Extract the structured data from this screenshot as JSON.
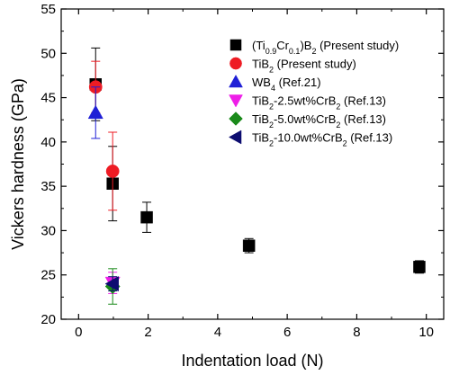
{
  "chart_data": {
    "type": "scatter",
    "xlabel": "Indentation load (N)",
    "ylabel": "Vickers hardness (GPa)",
    "xlim": [
      -0.5,
      10.5
    ],
    "ylim": [
      20,
      55
    ],
    "xticks": [
      0,
      2,
      4,
      6,
      8,
      10
    ],
    "yticks": [
      20,
      25,
      30,
      35,
      40,
      45,
      50,
      55
    ],
    "x_tick_labels": [
      "0",
      "2",
      "4",
      "6",
      "8",
      "10"
    ],
    "y_tick_labels": [
      "20",
      "25",
      "30",
      "35",
      "40",
      "45",
      "50",
      "55"
    ],
    "grid": false,
    "legend_position": "top-right",
    "series": [
      {
        "legend_parts": [
          [
            "(Ti",
            "n"
          ],
          [
            "0.9",
            "sub"
          ],
          [
            "Cr",
            "n"
          ],
          [
            "0.1",
            "sub"
          ],
          [
            ")B",
            "n"
          ],
          [
            "2",
            "sub"
          ],
          [
            " (Present study)",
            "n"
          ]
        ],
        "marker": "square",
        "color": "#000000",
        "points": [
          {
            "x": 0.49,
            "y": 46.5,
            "err": 4.1
          },
          {
            "x": 0.98,
            "y": 35.3,
            "err": 4.2
          },
          {
            "x": 1.96,
            "y": 31.5,
            "err": 1.7
          },
          {
            "x": 4.9,
            "y": 28.3,
            "err": 0.8
          },
          {
            "x": 9.8,
            "y": 25.9,
            "err": 0.7
          }
        ]
      },
      {
        "legend_parts": [
          [
            "TiB",
            "n"
          ],
          [
            "2",
            "sub"
          ],
          [
            " (Present study)",
            "n"
          ]
        ],
        "marker": "circle",
        "color": "#ee1c24",
        "points": [
          {
            "x": 0.49,
            "y": 46.2,
            "err": 2.9
          },
          {
            "x": 0.98,
            "y": 36.7,
            "err": 4.4
          }
        ]
      },
      {
        "legend_parts": [
          [
            "WB",
            "n"
          ],
          [
            "4",
            "sub"
          ],
          [
            " (Ref.21)",
            "n"
          ]
        ],
        "marker": "triangle-up",
        "color": "#1f1fd6",
        "points": [
          {
            "x": 0.49,
            "y": 43.3,
            "err": 2.9
          }
        ]
      },
      {
        "legend_parts": [
          [
            "TiB",
            "n"
          ],
          [
            "2",
            "sub"
          ],
          [
            "-2.5wt%CrB",
            "n"
          ],
          [
            "2",
            "sub"
          ],
          [
            " (Ref.13)",
            "n"
          ]
        ],
        "marker": "triangle-down",
        "color": "#ee1ee8",
        "points": [
          {
            "x": 0.98,
            "y": 24.1,
            "err": 1.2
          }
        ]
      },
      {
        "legend_parts": [
          [
            "TiB",
            "n"
          ],
          [
            "2",
            "sub"
          ],
          [
            "-5.0wt%CrB",
            "n"
          ],
          [
            "2",
            "sub"
          ],
          [
            " (Ref.13)",
            "n"
          ]
        ],
        "marker": "diamond",
        "color": "#1a8a1a",
        "points": [
          {
            "x": 0.98,
            "y": 23.7,
            "err": 2.0
          }
        ]
      },
      {
        "legend_parts": [
          [
            "TiB",
            "n"
          ],
          [
            "2",
            "sub"
          ],
          [
            "-10.0wt%CrB",
            "n"
          ],
          [
            "2",
            "sub"
          ],
          [
            " (Ref.13)",
            "n"
          ]
        ],
        "marker": "triangle-left",
        "color": "#0d0d70",
        "points": [
          {
            "x": 0.98,
            "y": 24.0,
            "err": 0.8
          }
        ]
      }
    ]
  }
}
